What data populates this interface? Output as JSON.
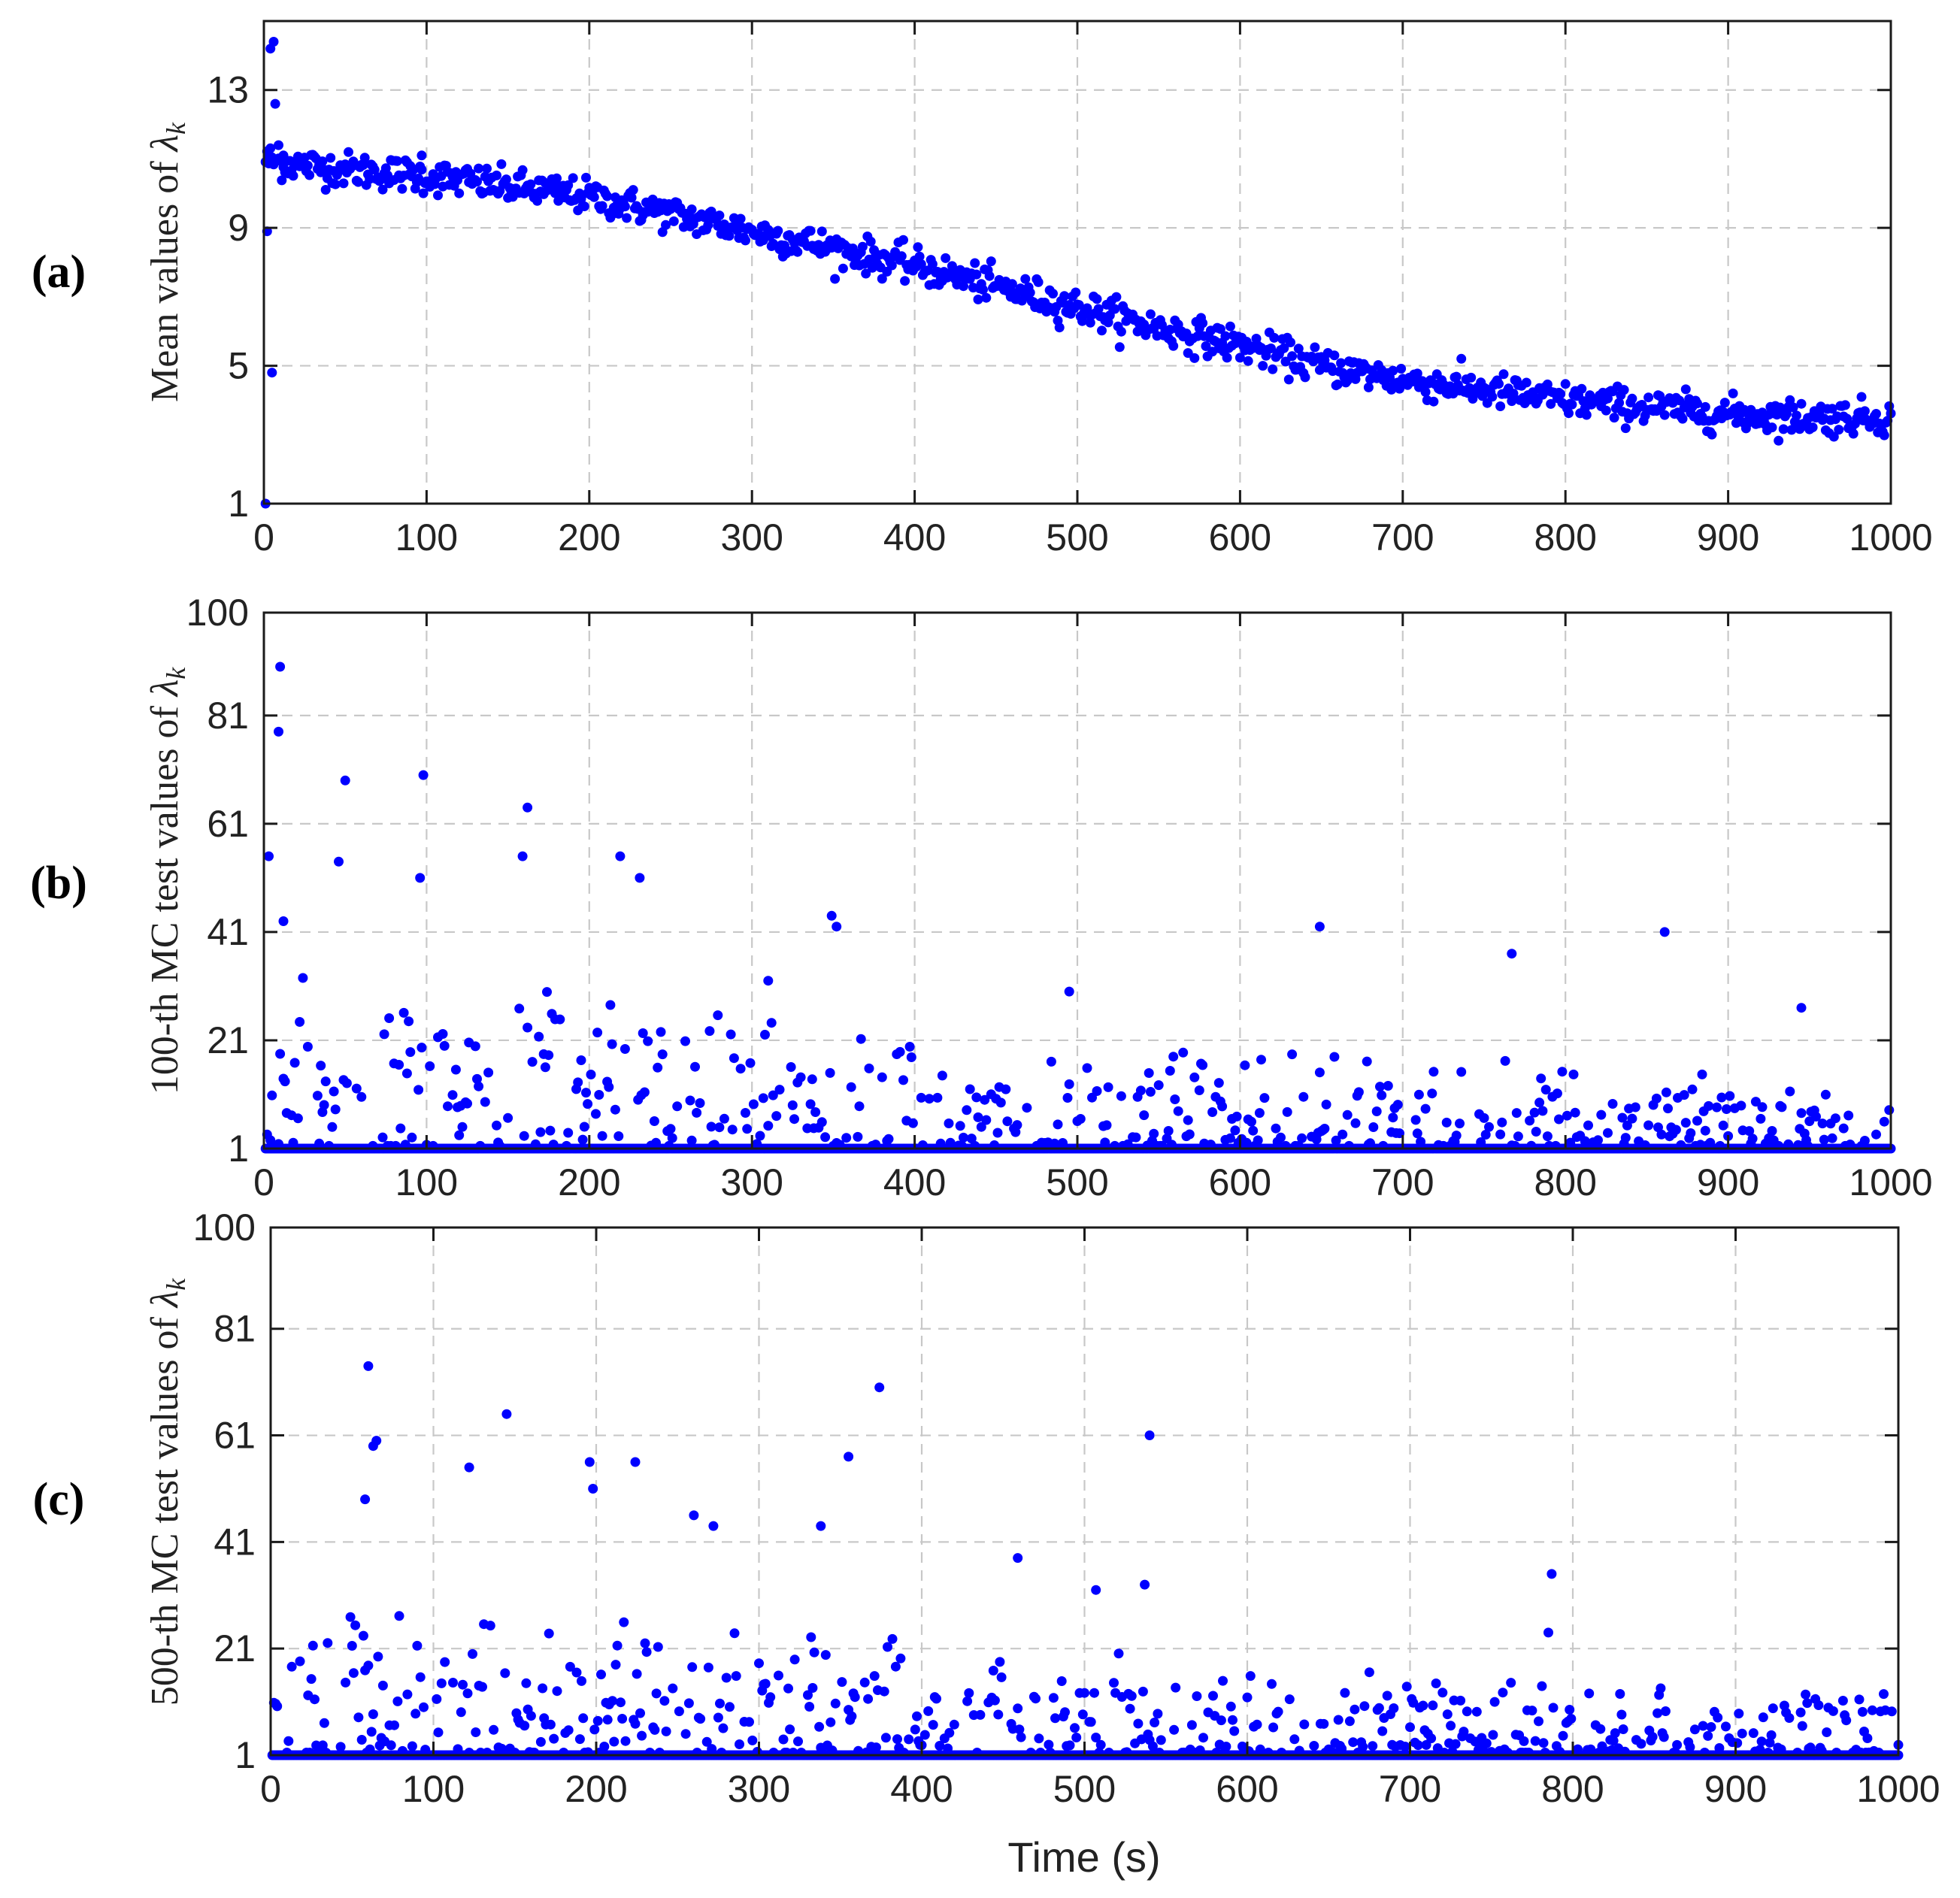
{
  "chart_data": [
    {
      "type": "scatter",
      "panel_label": "(a)",
      "ylabel_main": "Mean values of ",
      "ylabel_symbol": "λ",
      "ylabel_sub": "k",
      "xlabel": "",
      "xlim": [
        0,
        1000
      ],
      "ylim": [
        1,
        15
      ],
      "xticks": [
        0,
        100,
        200,
        300,
        400,
        500,
        600,
        700,
        800,
        900,
        1000
      ],
      "yticks": [
        1,
        5,
        9,
        13
      ],
      "grid": true,
      "marker_color": "#0000ff",
      "trend": {
        "x": [
          0,
          10,
          50,
          100,
          150,
          200,
          250,
          300,
          350,
          400,
          450,
          500,
          550,
          600,
          650,
          700,
          750,
          800,
          850,
          900,
          950,
          1000
        ],
        "y": [
          11.0,
          10.9,
          10.7,
          10.5,
          10.2,
          9.9,
          9.4,
          8.9,
          8.4,
          7.9,
          7.3,
          6.7,
          6.1,
          5.6,
          5.0,
          4.6,
          4.3,
          4.0,
          3.8,
          3.6,
          3.5,
          3.5
        ]
      },
      "noise_amplitude": 0.25,
      "outliers": {
        "x": [
          1,
          2,
          3,
          4,
          5,
          6,
          7,
          9,
          12,
          97
        ],
        "y": [
          1.0,
          8.9,
          11.0,
          14.2,
          4.8,
          14.4,
          12.6,
          11.4,
          11.1,
          11.1
        ]
      }
    },
    {
      "type": "scatter",
      "panel_label": "(b)",
      "ylabel_main": "100-th MC test values of ",
      "ylabel_symbol": "λ",
      "ylabel_sub": "k",
      "xlabel": "",
      "xlim": [
        0,
        1000
      ],
      "ylim": [
        1,
        100
      ],
      "xticks": [
        0,
        100,
        200,
        300,
        400,
        500,
        600,
        700,
        800,
        900,
        1000
      ],
      "yticks": [
        1,
        21,
        41,
        61,
        81,
        100
      ],
      "grid": true,
      "marker_color": "#0000ff",
      "baseline_value": 1,
      "scatter_max_trend": {
        "x": [
          0,
          200,
          400,
          600,
          800,
          1000
        ],
        "y": [
          35,
          28,
          22,
          20,
          16,
          12
        ]
      },
      "outliers": {
        "x": [
          3,
          9,
          10,
          12,
          46,
          50,
          96,
          98,
          159,
          162,
          219,
          231,
          349,
          352,
          649,
          861,
          767,
          945,
          495,
          310
        ],
        "y": [
          55,
          78,
          90,
          43,
          54,
          69,
          51,
          70,
          55,
          64,
          55,
          51,
          44,
          42,
          42,
          41,
          37,
          27,
          30,
          32
        ]
      }
    },
    {
      "type": "scatter",
      "panel_label": "(c)",
      "ylabel_main": "500-th MC test values of ",
      "ylabel_symbol": "λ",
      "ylabel_sub": "k",
      "xlabel": "Time (s)",
      "xlim": [
        0,
        1000
      ],
      "ylim": [
        1,
        100
      ],
      "xticks": [
        0,
        100,
        200,
        300,
        400,
        500,
        600,
        700,
        800,
        900,
        1000
      ],
      "yticks": [
        1,
        21,
        41,
        61,
        81,
        100
      ],
      "grid": true,
      "marker_color": "#0000ff",
      "baseline_value": 1,
      "scatter_max_trend": {
        "x": [
          0,
          200,
          400,
          600,
          800,
          1000
        ],
        "y": [
          30,
          26,
          22,
          18,
          15,
          14
        ]
      },
      "outliers": {
        "x": [
          60,
          63,
          65,
          58,
          145,
          122,
          196,
          198,
          224,
          374,
          355,
          338,
          540,
          537,
          459,
          507,
          787,
          785,
          260,
          272
        ],
        "y": [
          74,
          59,
          60,
          49,
          65,
          55,
          56,
          51,
          56,
          70,
          57,
          44,
          61,
          33,
          38,
          32,
          35,
          24,
          46,
          44
        ]
      }
    }
  ]
}
